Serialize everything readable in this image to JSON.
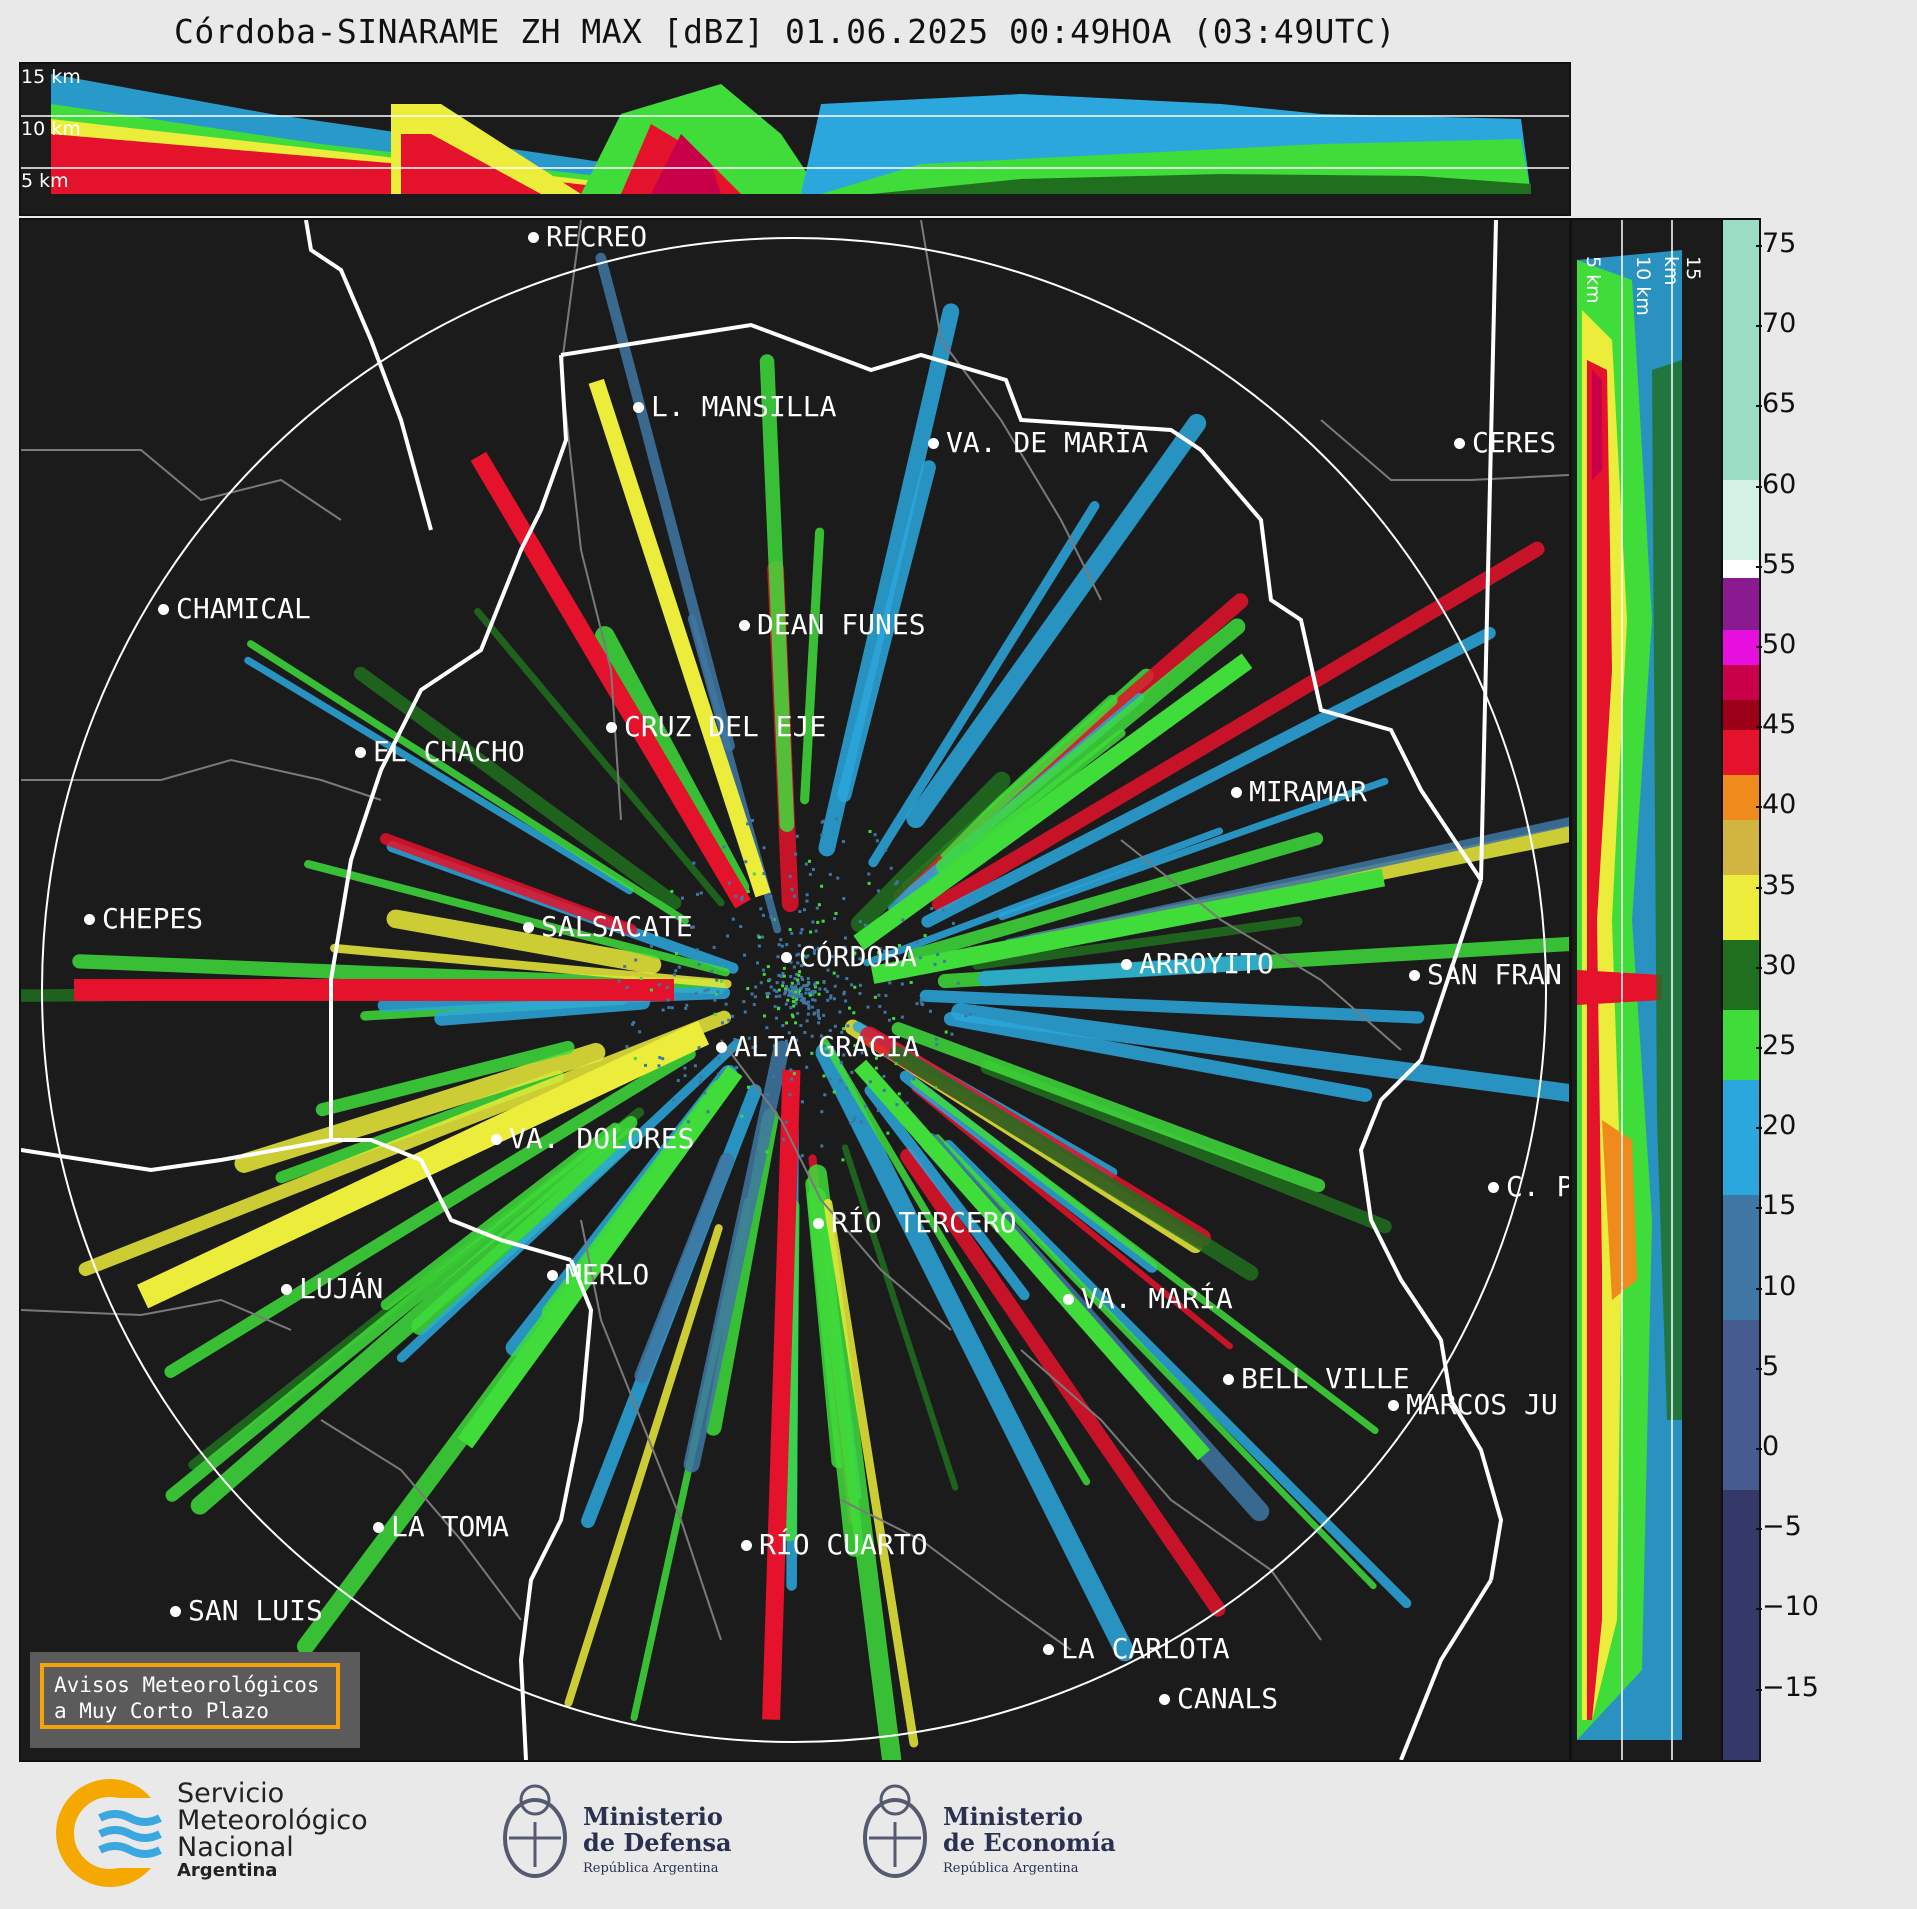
{
  "title": "Córdoba-SINARAME ZH MAX [dBZ] 01.06.2025 00:49HOA (03:49UTC)",
  "top_panel": {
    "height_labels": [
      "15 km",
      "10 km",
      "5 km"
    ]
  },
  "side_panel": {
    "height_labels": [
      "5 km",
      "10 km",
      "15 km"
    ]
  },
  "colorbar": {
    "ticks": [
      "75",
      "70",
      "65",
      "60",
      "55",
      "50",
      "45",
      "40",
      "35",
      "30",
      "25",
      "20",
      "15",
      "10",
      "5",
      "0",
      "−5",
      "−10",
      "−15"
    ],
    "colors": {
      "purple": "#8a1a8f",
      "magenta": "#e60fe0",
      "crimson": "#c8004a",
      "red": "#e4122a",
      "orange": "#ef8a1d",
      "yellow": "#ecec3a",
      "green": "#3fdc3a",
      "darkgreen": "#1f6f1f",
      "blue": "#2ba7de",
      "steel": "#3f77a4",
      "navy": "#35396a"
    }
  },
  "cities": [
    {
      "name": "RECREO"
    },
    {
      "name": "L. MANSILLA"
    },
    {
      "name": "VA. DE MARÍA"
    },
    {
      "name": "CERES"
    },
    {
      "name": "CHAMICAL"
    },
    {
      "name": "DEAN FUNES"
    },
    {
      "name": "CRUZ DEL EJE"
    },
    {
      "name": "EL CHACHO"
    },
    {
      "name": "MIRAMAR"
    },
    {
      "name": "CHEPES"
    },
    {
      "name": "SALSACATE"
    },
    {
      "name": "CÓRDOBA"
    },
    {
      "name": "ARROYITO"
    },
    {
      "name": "SAN FRAN"
    },
    {
      "name": "ALTA GRACIA"
    },
    {
      "name": "VA. DOLORES"
    },
    {
      "name": "C. P"
    },
    {
      "name": "RÍO TERCERO"
    },
    {
      "name": "MERLO"
    },
    {
      "name": "LUJÁN"
    },
    {
      "name": "VA. MARÍA"
    },
    {
      "name": "BELL VILLE"
    },
    {
      "name": "MARCOS JU"
    },
    {
      "name": "LA TOMA"
    },
    {
      "name": "RÍO CUARTO"
    },
    {
      "name": "SAN LUIS"
    },
    {
      "name": "LA CARLOTA"
    },
    {
      "name": "CANALS"
    }
  ],
  "warning": {
    "line1": "Avisos Meteorológicos",
    "line2": "a Muy Corto Plazo"
  },
  "logos": {
    "smn": {
      "line1": "Servicio",
      "line2": "Meteorológico",
      "line3": "Nacional",
      "line4": "Argentina"
    },
    "defensa": {
      "line1": "Ministerio",
      "line2": "de Defensa",
      "line3": "República Argentina"
    },
    "economia": {
      "line1": "Ministerio",
      "line2": "de Economía",
      "line3": "República Argentina"
    }
  }
}
